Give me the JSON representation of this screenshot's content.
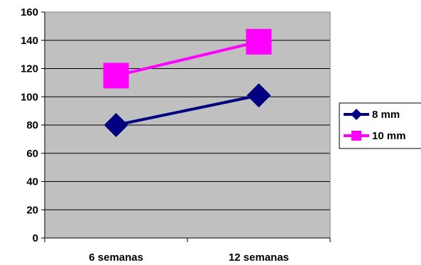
{
  "chart_data": {
    "type": "line",
    "title": "",
    "xlabel": "",
    "ylabel": "",
    "categories": [
      "6 semanas",
      "12 semanas"
    ],
    "ylim": [
      0,
      160
    ],
    "yticks": [
      0,
      20,
      40,
      60,
      80,
      100,
      120,
      140,
      160
    ],
    "grid": true,
    "plot_background": "#c0c0c0",
    "legend_position": "right",
    "series": [
      {
        "name": "8 mm",
        "values": [
          80,
          101
        ],
        "color": "#000080",
        "marker": "diamond"
      },
      {
        "name": "10 mm",
        "values": [
          115,
          139
        ],
        "color": "#ff00ff",
        "marker": "square"
      }
    ]
  }
}
